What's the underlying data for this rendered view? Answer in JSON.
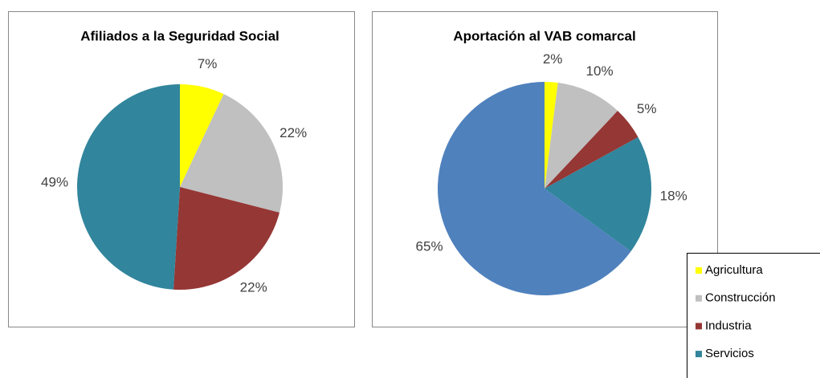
{
  "chart_data": [
    {
      "type": "pie",
      "title": "Afiliados a la Seguridad Social",
      "values": [
        7,
        22,
        22,
        49
      ],
      "value_labels": [
        "7%",
        "22%",
        "22%",
        "49%"
      ],
      "colors": [
        "#ffff00",
        "#c0c0c0",
        "#953735",
        "#31859c"
      ]
    },
    {
      "type": "pie",
      "title": "Aportación al VAB comarcal",
      "values": [
        2,
        10,
        5,
        18,
        65
      ],
      "value_labels": [
        "2%",
        "10%",
        "5%",
        "18%",
        "65%"
      ],
      "colors": [
        "#ffff00",
        "#c0c0c0",
        "#953735",
        "#31859c",
        "#4f81bd"
      ]
    }
  ],
  "legend": {
    "entries": [
      "Agricultura",
      "Construcción",
      "Industria",
      "Servicios"
    ],
    "colors": [
      "#ffff00",
      "#c0c0c0",
      "#953735",
      "#31859c"
    ]
  }
}
